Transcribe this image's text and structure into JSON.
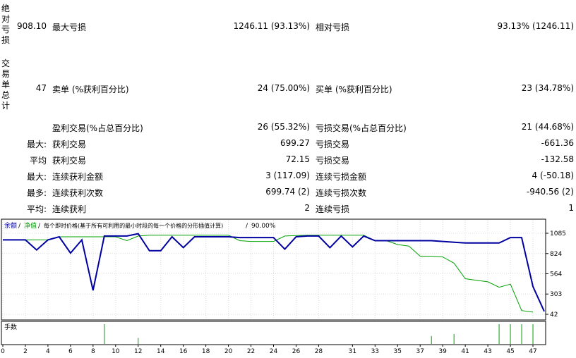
{
  "sections": {
    "drawdown_vertical": [
      "绝",
      "对",
      "亏",
      "损"
    ],
    "trades_vertical": [
      "交",
      "易",
      "单",
      "总",
      "计"
    ]
  },
  "row1": {
    "abs_value": "908.10",
    "max_label": "最大亏损",
    "max_value": "1246.11 (93.13%)",
    "rel_label": "相对亏损",
    "rel_value": "93.13% (1246.11)"
  },
  "row2": {
    "total": "47",
    "short_label": "卖单 (%获利百分比)",
    "short_value": "24 (75.00%)",
    "long_label": "买单 (%获利百分比)",
    "long_value": "23 (34.78%)"
  },
  "stats": [
    {
      "prefix": "",
      "left_label": "盈利交易(%占总百分比)",
      "left_value": "26 (55.32%)",
      "right_label": "亏损交易(%占总百分比)",
      "right_value": "21 (44.68%)"
    },
    {
      "prefix": "最大:",
      "left_label": "获利交易",
      "left_value": "699.27",
      "right_label": "亏损交易",
      "right_value": "-661.36"
    },
    {
      "prefix": "平均",
      "left_label": "获利交易",
      "left_value": "72.15",
      "right_label": "亏损交易",
      "right_value": "-132.58"
    },
    {
      "prefix": "最大:",
      "left_label": "连续获利金额",
      "left_value": "3 (117.09)",
      "right_label": "连续亏损金额",
      "right_value": "4 (-50.18)"
    },
    {
      "prefix": "最多:",
      "left_label": "连续获利次数",
      "left_value": "699.74 (2)",
      "right_label": "连续亏损次数",
      "right_value": "-940.56 (2)"
    },
    {
      "prefix": "平均:",
      "left_label": "连续获利",
      "left_value": "2",
      "right_label": "连续亏损",
      "right_value": "1"
    }
  ],
  "chart_data": {
    "type": "line",
    "legend": {
      "balance": "余额",
      "equity": "净值",
      "rest": "每个即时价格(基于所有可利用的最小时段的每一个价格的分形插值计算)",
      "quality": "90.00%"
    },
    "volume_label": "手数",
    "y_ticks": [
      1085,
      824,
      564,
      303,
      42
    ],
    "ylim": [
      42,
      1085
    ],
    "x_ticks": [
      0,
      2,
      4,
      6,
      8,
      10,
      12,
      14,
      16,
      18,
      20,
      22,
      24,
      26,
      28,
      31,
      33,
      35,
      37,
      39,
      41,
      43,
      45,
      47
    ],
    "xlim": [
      0,
      48
    ],
    "series": [
      {
        "color": "#0000a0",
        "points": [
          [
            0,
            1000
          ],
          [
            2,
            1000
          ],
          [
            3,
            870
          ],
          [
            4,
            1000
          ],
          [
            5,
            1040
          ],
          [
            6,
            830
          ],
          [
            7,
            1000
          ],
          [
            8,
            350
          ],
          [
            9,
            1050
          ],
          [
            10,
            1050
          ],
          [
            11,
            1050
          ],
          [
            12,
            1080
          ],
          [
            13,
            860
          ],
          [
            14,
            860
          ],
          [
            15,
            1040
          ],
          [
            16,
            900
          ],
          [
            17,
            1040
          ],
          [
            18,
            1040
          ],
          [
            19,
            1040
          ],
          [
            20,
            1040
          ],
          [
            21,
            1030
          ],
          [
            22,
            1030
          ],
          [
            23,
            1030
          ],
          [
            24,
            1030
          ],
          [
            25,
            880
          ],
          [
            26,
            1040
          ],
          [
            27,
            1050
          ],
          [
            28,
            1050
          ],
          [
            29,
            900
          ],
          [
            30,
            1050
          ],
          [
            31,
            910
          ],
          [
            32,
            1050
          ],
          [
            33,
            990
          ],
          [
            34,
            990
          ],
          [
            35,
            990
          ],
          [
            36,
            990
          ],
          [
            37,
            990
          ],
          [
            38,
            990
          ],
          [
            39,
            980
          ],
          [
            40,
            970
          ],
          [
            41,
            960
          ],
          [
            42,
            960
          ],
          [
            43,
            960
          ],
          [
            44,
            960
          ],
          [
            45,
            1030
          ],
          [
            46,
            1030
          ],
          [
            47,
            400
          ],
          [
            48,
            80
          ]
        ]
      },
      {
        "color": "#00a000",
        "points": [
          [
            0,
            1000
          ],
          [
            2,
            1000
          ],
          [
            3,
            1000
          ],
          [
            4,
            1000
          ],
          [
            5,
            1040
          ],
          [
            10,
            1040
          ],
          [
            11,
            990
          ],
          [
            12,
            1050
          ],
          [
            13,
            1060
          ],
          [
            14,
            1060
          ],
          [
            15,
            1060
          ],
          [
            16,
            1060
          ],
          [
            17,
            1060
          ],
          [
            18,
            1060
          ],
          [
            19,
            1060
          ],
          [
            20,
            1060
          ],
          [
            21,
            990
          ],
          [
            22,
            980
          ],
          [
            23,
            980
          ],
          [
            24,
            980
          ],
          [
            25,
            1050
          ],
          [
            26,
            1055
          ],
          [
            27,
            1060
          ],
          [
            28,
            1060
          ],
          [
            29,
            1060
          ],
          [
            30,
            1060
          ],
          [
            31,
            1060
          ],
          [
            32,
            1060
          ],
          [
            33,
            990
          ],
          [
            34,
            990
          ],
          [
            35,
            940
          ],
          [
            36,
            920
          ],
          [
            37,
            790
          ],
          [
            38,
            790
          ],
          [
            39,
            780
          ],
          [
            40,
            700
          ],
          [
            41,
            500
          ],
          [
            42,
            480
          ],
          [
            43,
            460
          ],
          [
            44,
            390
          ],
          [
            45,
            430
          ],
          [
            46,
            90
          ],
          [
            47,
            70
          ]
        ]
      }
    ],
    "volume": [
      [
        9,
        1.0
      ],
      [
        12,
        0.3
      ],
      [
        38,
        0.4
      ],
      [
        40,
        0.5
      ],
      [
        44,
        1.0
      ],
      [
        45,
        1.0
      ],
      [
        46,
        1.0
      ],
      [
        47,
        1.0
      ]
    ]
  }
}
